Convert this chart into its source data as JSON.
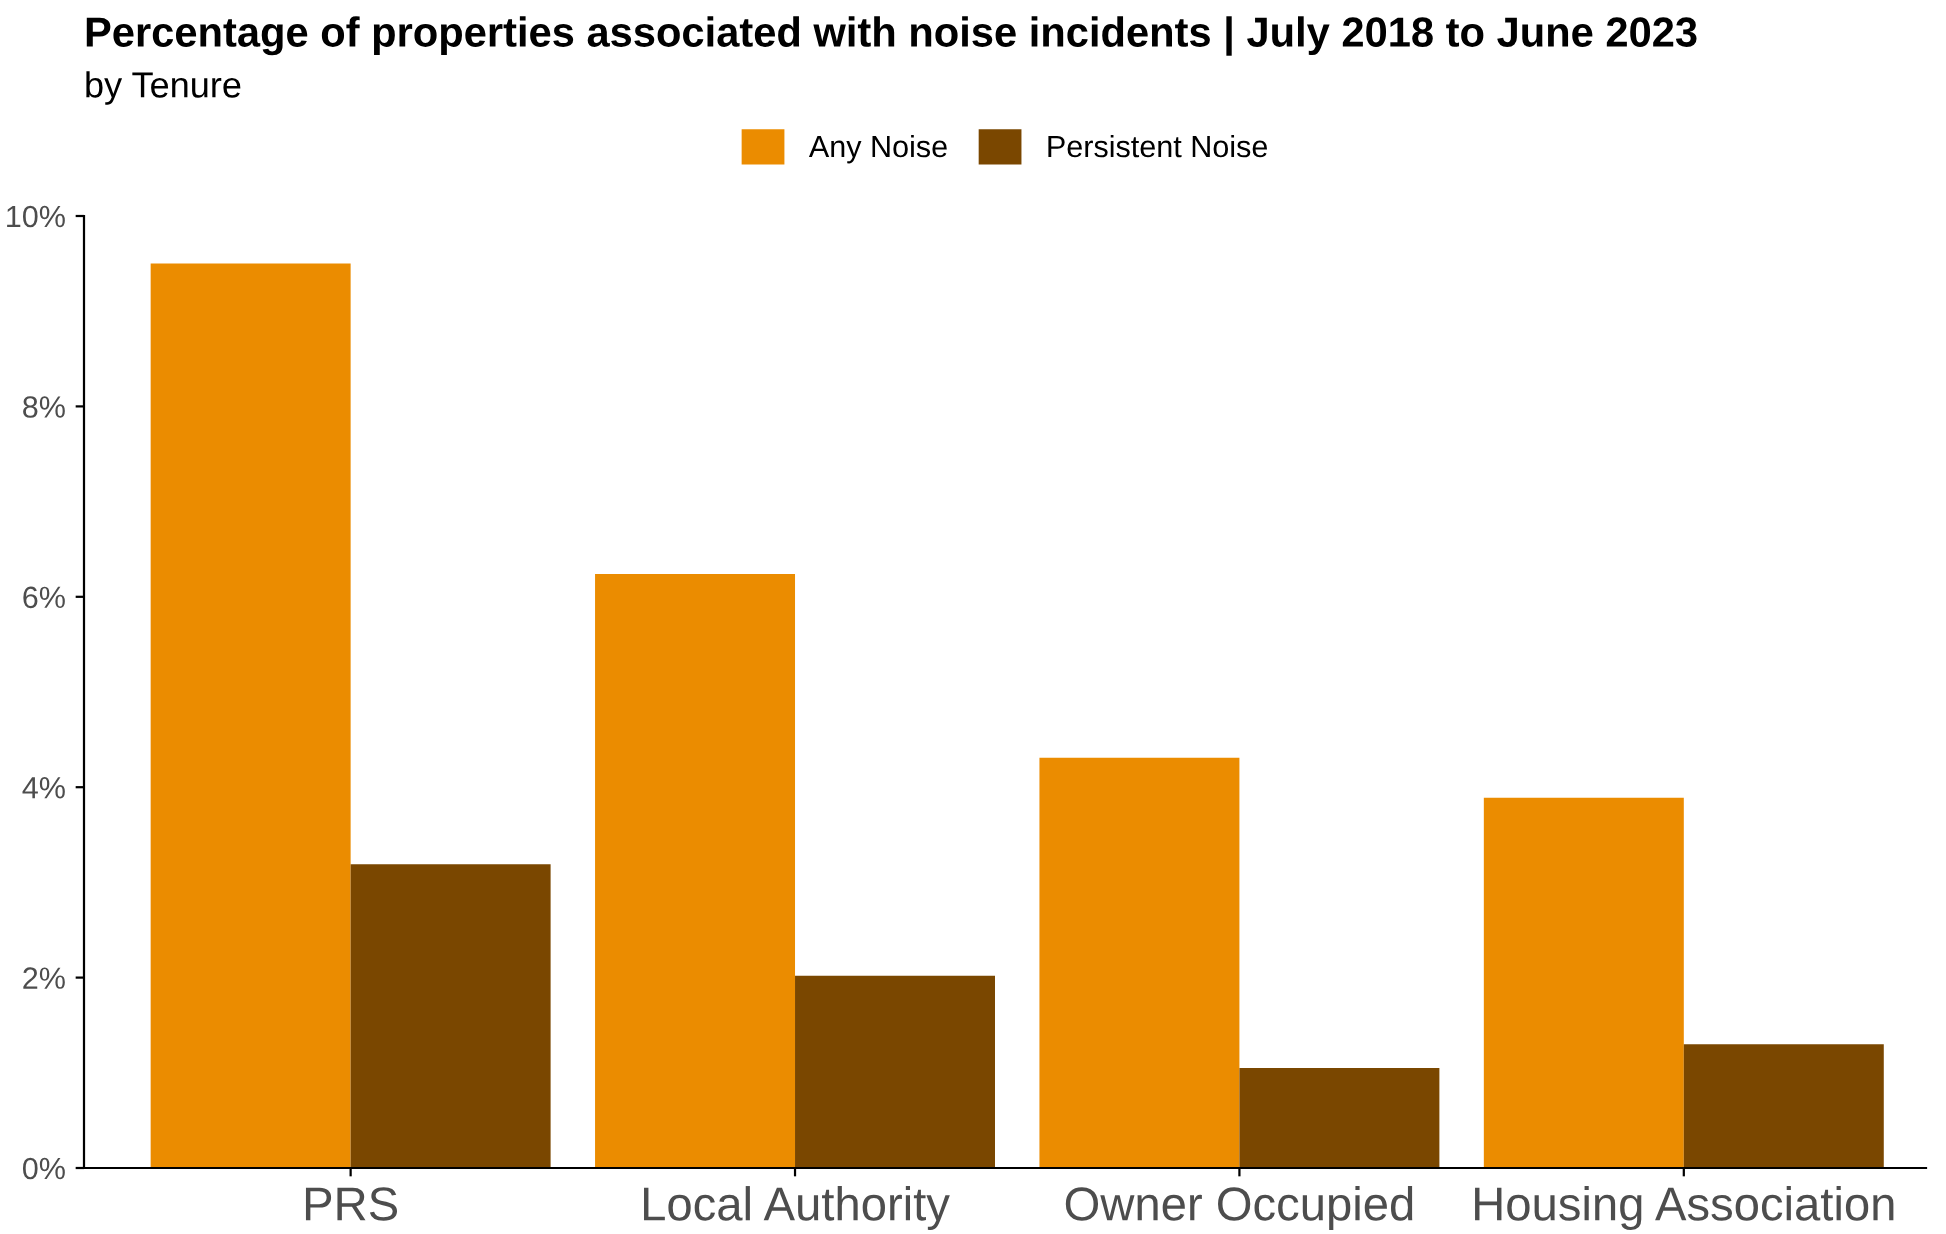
{
  "chart_data": {
    "type": "bar",
    "title": "Percentage of properties associated with noise incidents | July 2018 to June 2023",
    "subtitle": "by Tenure",
    "categories": [
      "PRS",
      "Local Authority",
      "Owner Occupied",
      "Housing Association"
    ],
    "series": [
      {
        "name": "Any Noise",
        "color": "#eb8c00",
        "values": [
          9.5,
          6.24,
          4.31,
          3.89
        ]
      },
      {
        "name": "Persistent Noise",
        "color": "#7a4700",
        "values": [
          3.19,
          2.02,
          1.05,
          1.3
        ]
      }
    ],
    "ylim": [
      0,
      10
    ],
    "yticks": [
      {
        "value": 0,
        "label": "0%"
      },
      {
        "value": 2,
        "label": "2%"
      },
      {
        "value": 4,
        "label": "4%"
      },
      {
        "value": 6,
        "label": "6%"
      },
      {
        "value": 8,
        "label": "8%"
      },
      {
        "value": 10,
        "label": "10%"
      }
    ],
    "grid": false,
    "legend": "top"
  }
}
